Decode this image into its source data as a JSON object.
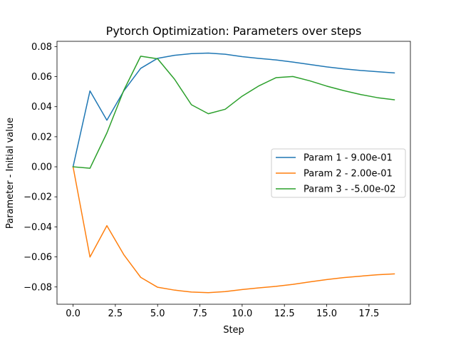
{
  "chart_data": {
    "type": "line",
    "title": "Pytorch Optimization: Parameters over steps",
    "xlabel": "Step",
    "ylabel": "Parameter - Initial value",
    "xlim": [
      -0.95,
      19.95
    ],
    "ylim": [
      -0.0915,
      0.0835
    ],
    "xticks": [
      0.0,
      2.5,
      5.0,
      7.5,
      10.0,
      12.5,
      15.0,
      17.5
    ],
    "xtick_labels": [
      "0.0",
      "2.5",
      "5.0",
      "7.5",
      "10.0",
      "12.5",
      "15.0",
      "17.5"
    ],
    "yticks": [
      -0.08,
      -0.06,
      -0.04,
      -0.02,
      0.0,
      0.02,
      0.04,
      0.06,
      0.08
    ],
    "ytick_labels": [
      "−0.08",
      "−0.06",
      "−0.04",
      "−0.02",
      "0.00",
      "0.02",
      "0.04",
      "0.06",
      "0.08"
    ],
    "grid": false,
    "legend_position": "center-right",
    "x": [
      0,
      1,
      2,
      3,
      4,
      5,
      6,
      7,
      8,
      9,
      10,
      11,
      12,
      13,
      14,
      15,
      16,
      17,
      18,
      19
    ],
    "series": [
      {
        "name": "Param 1 - 9.00e-01",
        "color": "#1f77b4",
        "values": [
          0.0,
          0.0505,
          0.031,
          0.0505,
          0.0655,
          0.0722,
          0.0742,
          0.0753,
          0.0757,
          0.0749,
          0.0733,
          0.0721,
          0.0711,
          0.0697,
          0.0681,
          0.0665,
          0.0652,
          0.0641,
          0.0633,
          0.0625
        ]
      },
      {
        "name": "Param 2 - 2.00e-01",
        "color": "#ff7f0e",
        "values": [
          0.0,
          -0.0601,
          -0.0392,
          -0.0585,
          -0.0736,
          -0.0802,
          -0.0821,
          -0.0834,
          -0.0838,
          -0.0831,
          -0.0817,
          -0.0806,
          -0.0796,
          -0.0783,
          -0.0766,
          -0.0751,
          -0.0738,
          -0.0728,
          -0.0719,
          -0.0713
        ]
      },
      {
        "name": "Param 3 - -5.00e-02",
        "color": "#2ca02c",
        "values": [
          0.0,
          -0.001,
          0.0225,
          0.0509,
          0.0736,
          0.0719,
          0.0583,
          0.0413,
          0.0353,
          0.0383,
          0.047,
          0.0539,
          0.0593,
          0.0601,
          0.0572,
          0.0537,
          0.0507,
          0.0481,
          0.046,
          0.0446
        ]
      }
    ]
  }
}
